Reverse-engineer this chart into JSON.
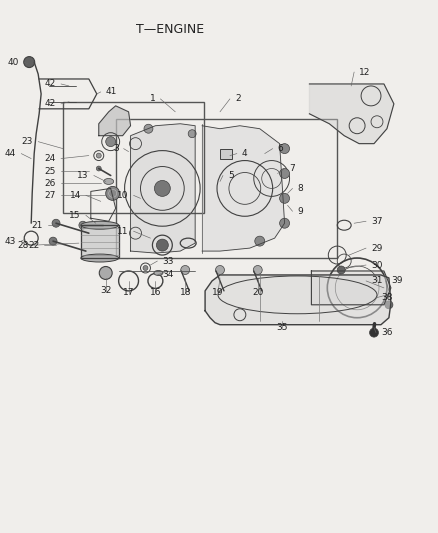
{
  "title": "T—ENGINE",
  "bg": "#f0eeeb",
  "lc": "#404040",
  "tc": "#222222",
  "lw_main": 0.9,
  "lw_thin": 0.5,
  "fs_label": 6.5,
  "fs_title": 9.5
}
